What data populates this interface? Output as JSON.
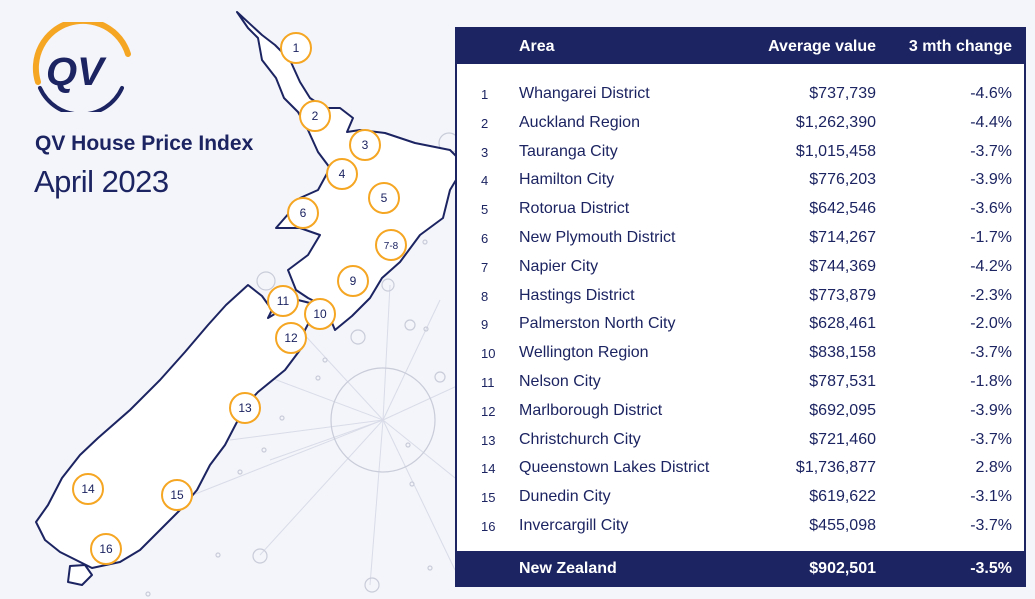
{
  "brand": {
    "logo_text": "QV"
  },
  "title": "QV House Price Index",
  "subtitle": "April 2023",
  "table": {
    "headers": {
      "area": "Area",
      "avg": "Average value",
      "change": "3 mth change"
    },
    "rows": [
      {
        "num": "1",
        "area": "Whangarei District",
        "avg": "$737,739",
        "change": "-4.6%"
      },
      {
        "num": "2",
        "area": "Auckland Region",
        "avg": "$1,262,390",
        "change": "-4.4%"
      },
      {
        "num": "3",
        "area": "Tauranga City",
        "avg": "$1,015,458",
        "change": "-3.7%"
      },
      {
        "num": "4",
        "area": "Hamilton City",
        "avg": "$776,203",
        "change": "-3.9%"
      },
      {
        "num": "5",
        "area": "Rotorua District",
        "avg": "$642,546",
        "change": "-3.6%"
      },
      {
        "num": "6",
        "area": "New Plymouth District",
        "avg": "$714,267",
        "change": "-1.7%"
      },
      {
        "num": "7",
        "area": "Napier City",
        "avg": "$744,369",
        "change": "-4.2%"
      },
      {
        "num": "8",
        "area": "Hastings District",
        "avg": "$773,879",
        "change": "-2.3%"
      },
      {
        "num": "9",
        "area": "Palmerston North City",
        "avg": "$628,461",
        "change": "-2.0%"
      },
      {
        "num": "10",
        "area": "Wellington Region",
        "avg": "$838,158",
        "change": "-3.7%"
      },
      {
        "num": "11",
        "area": "Nelson City",
        "avg": "$787,531",
        "change": "-1.8%"
      },
      {
        "num": "12",
        "area": "Marlborough District",
        "avg": "$692,095",
        "change": "-3.9%"
      },
      {
        "num": "13",
        "area": "Christchurch City",
        "avg": "$721,460",
        "change": "-3.7%"
      },
      {
        "num": "14",
        "area": "Queenstown Lakes District",
        "avg": "$1,736,877",
        "change": "2.8%"
      },
      {
        "num": "15",
        "area": "Dunedin City",
        "avg": "$619,622",
        "change": "-3.1%"
      },
      {
        "num": "16",
        "area": "Invercargill City",
        "avg": "$455,098",
        "change": "-3.7%"
      }
    ],
    "footer": {
      "area": "New Zealand",
      "avg": "$902,501",
      "change": "-3.5%"
    }
  },
  "map_markers": [
    "1",
    "2",
    "3",
    "4",
    "5",
    "6",
    "7-8",
    "9",
    "10",
    "11",
    "12",
    "13",
    "14",
    "15",
    "16"
  ],
  "colors": {
    "navy": "#1c2461",
    "orange": "#f5a623",
    "background": "#f4f5fa"
  }
}
